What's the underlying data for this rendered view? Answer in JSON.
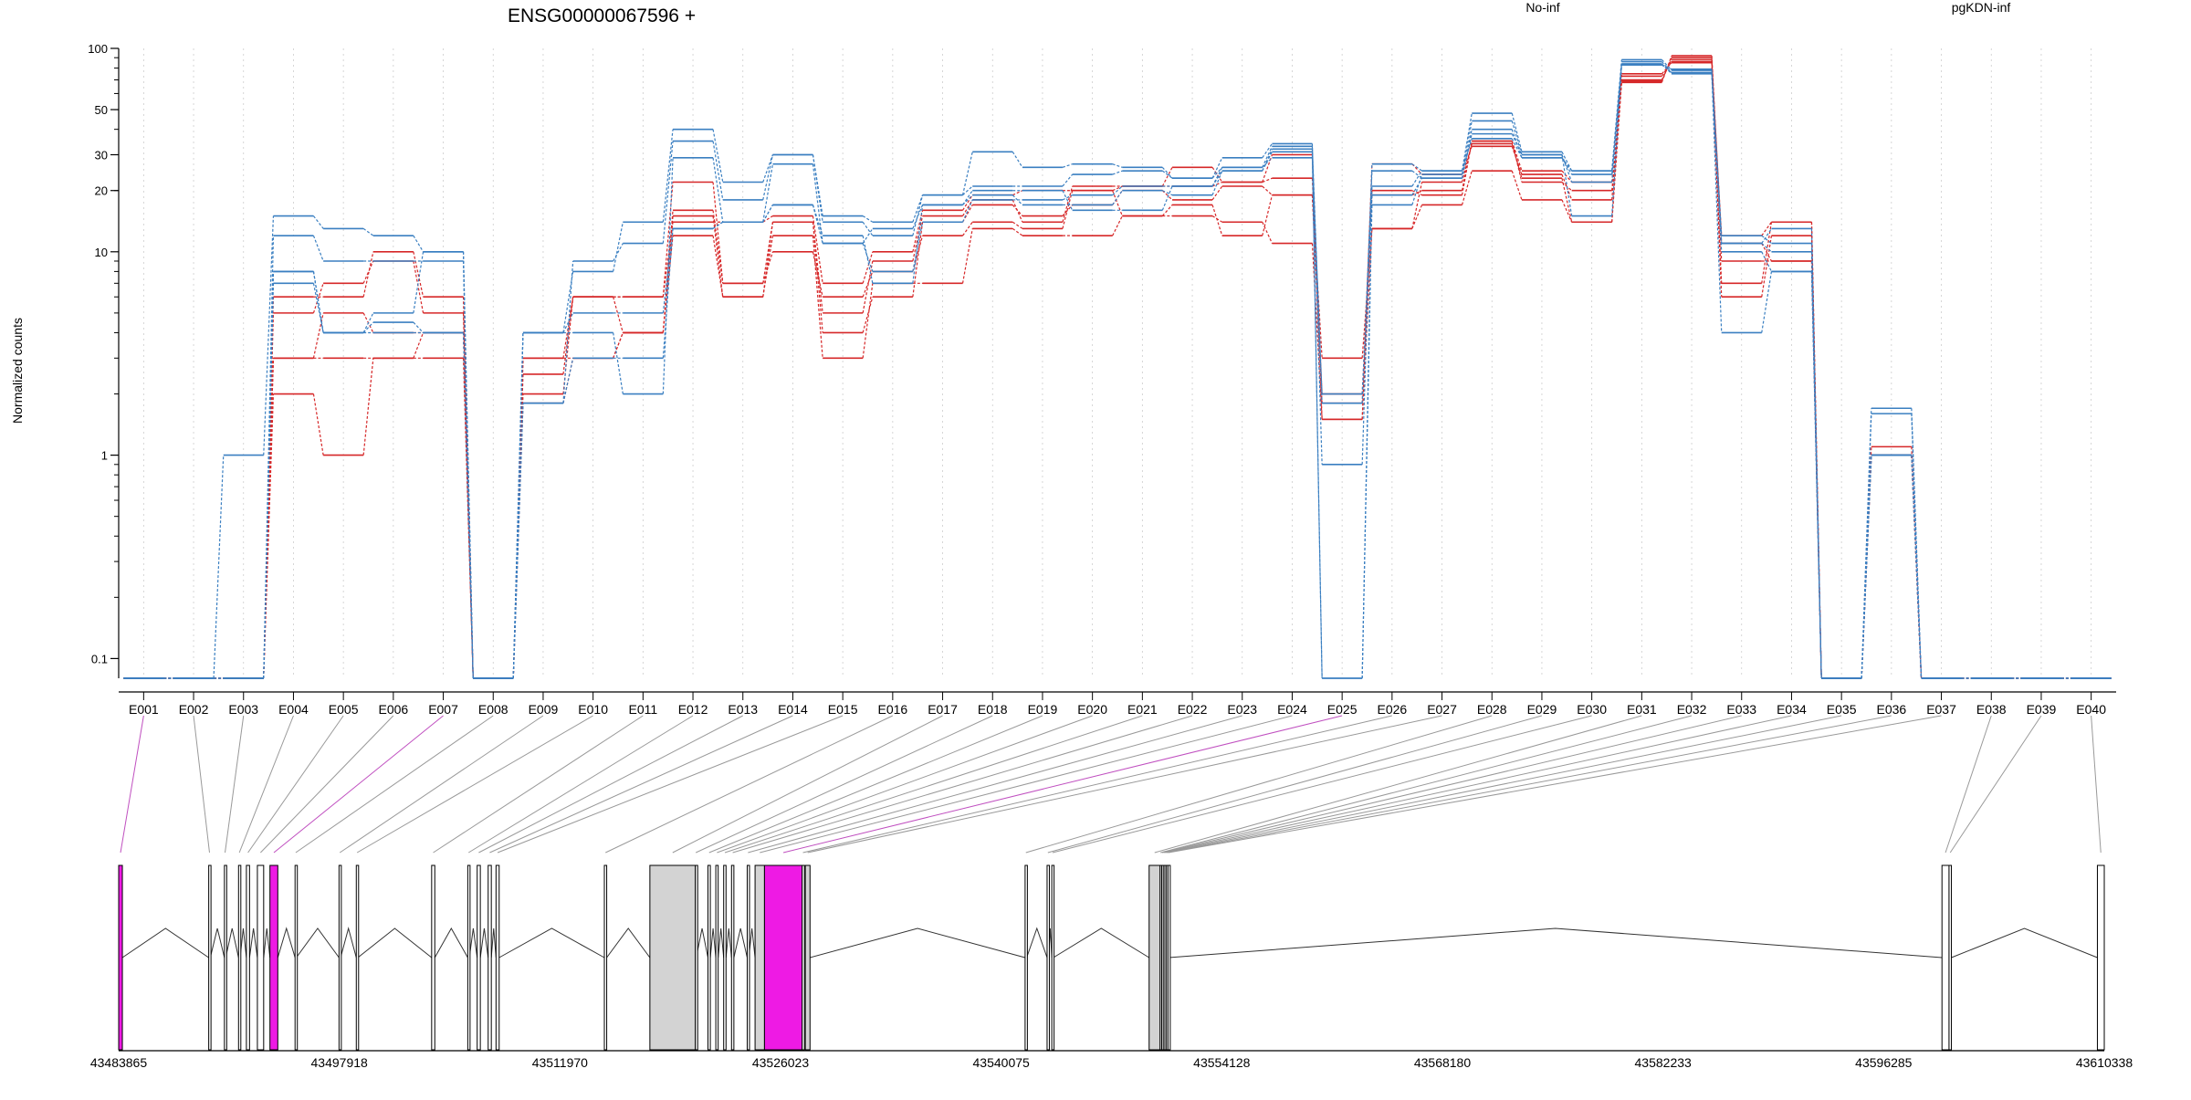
{
  "chart_data": [
    {
      "type": "line",
      "title": "ENSG00000067596 +",
      "ylabel": "Normalized counts",
      "xlabel": "",
      "yscale": "log",
      "ylim": [
        0.08,
        100
      ],
      "yticks": [
        0.1,
        1,
        10,
        20,
        30,
        50,
        100
      ],
      "ytick_labels": [
        "0.1",
        "1",
        "10",
        "20",
        "30",
        "50",
        "100"
      ],
      "grid": "vertical dotted",
      "legend": "top, horizontal",
      "categories": [
        "E001",
        "E002",
        "E003",
        "E004",
        "E005",
        "E006",
        "E007",
        "E008",
        "E009",
        "E010",
        "E011",
        "E012",
        "E013",
        "E014",
        "E015",
        "E016",
        "E017",
        "E018",
        "E019",
        "E020",
        "E021",
        "E022",
        "E023",
        "E024",
        "E025",
        "E026",
        "E027",
        "E028",
        "E029",
        "E030",
        "E031",
        "E032",
        "E033",
        "E034",
        "E035",
        "E036",
        "E037",
        "E038",
        "E039",
        "E040"
      ],
      "groups": [
        {
          "name": "No-inf",
          "color": "#d62728"
        },
        {
          "name": "pgKDN-inf",
          "color": "#3a7fc1"
        }
      ],
      "series": [
        {
          "group": "No-inf",
          "values": [
            0.08,
            0.08,
            0.08,
            6,
            6,
            10,
            6,
            0.08,
            3,
            3,
            4,
            15,
            6,
            14,
            5,
            9,
            15,
            18,
            14,
            21,
            21,
            21,
            22,
            23,
            2,
            20,
            19,
            35,
            25,
            22,
            75,
            85,
            12,
            14,
            0.08,
            1,
            0.08,
            0.08,
            0.08,
            0.08
          ]
        },
        {
          "group": "No-inf",
          "values": [
            0.08,
            0.08,
            0.08,
            5,
            7,
            9,
            5,
            0.08,
            2.5,
            6,
            6,
            22,
            7,
            10,
            6,
            8,
            12,
            14,
            13,
            20,
            15,
            15,
            14,
            11,
            1.5,
            13,
            17,
            25,
            18,
            14,
            70,
            88,
            9,
            9,
            0.08,
            1,
            0.08,
            0.08,
            0.08,
            0.08
          ]
        },
        {
          "group": "No-inf",
          "values": [
            0.08,
            0.08,
            0.08,
            3,
            5,
            4,
            4,
            0.08,
            2,
            6,
            4,
            16,
            7,
            14,
            4,
            6,
            14,
            17,
            15,
            17,
            20,
            18,
            21,
            19,
            1.8,
            19,
            20,
            35,
            22,
            20,
            68,
            92,
            11,
            9,
            0.08,
            1,
            0.08,
            0.08,
            0.08,
            0.08
          ]
        },
        {
          "group": "No-inf",
          "values": [
            0.08,
            0.08,
            0.08,
            2,
            1,
            3,
            3,
            0.08,
            1.8,
            3,
            4,
            12,
            6,
            12,
            3,
            7,
            7,
            13,
            12,
            12,
            15,
            17,
            12,
            19,
            3,
            13,
            22,
            34,
            23,
            14,
            69,
            90,
            6,
            12,
            0.08,
            1,
            0.08,
            0.08,
            0.08,
            0.08
          ]
        },
        {
          "group": "No-inf",
          "values": [
            0.08,
            0.08,
            0.08,
            3,
            3,
            3,
            4,
            0.08,
            3,
            6,
            6,
            14,
            14,
            15,
            7,
            10,
            16,
            19,
            20,
            20,
            21,
            26,
            22,
            30,
            1.5,
            27,
            24,
            33,
            24,
            18,
            73,
            86,
            7,
            14,
            0.08,
            1.1,
            0.08,
            0.08,
            0.08,
            0.08
          ]
        },
        {
          "group": "pgKDN-inf",
          "values": [
            0.08,
            0.08,
            1,
            15,
            13,
            12,
            10,
            0.08,
            4,
            8,
            14,
            40,
            22,
            30,
            15,
            14,
            19,
            31,
            26,
            27,
            26,
            23,
            29,
            34,
            0.9,
            27,
            25,
            48,
            31,
            25,
            88,
            78,
            12,
            11,
            0.08,
            1,
            0.08,
            0.08,
            0.08,
            0.08
          ]
        },
        {
          "group": "pgKDN-inf",
          "values": [
            0.08,
            0.08,
            0.08,
            12,
            9,
            9,
            9,
            0.08,
            1.8,
            9,
            11,
            35,
            18,
            30,
            14,
            12,
            19,
            21,
            21,
            24,
            25,
            23,
            26,
            33,
            1.8,
            25,
            23,
            40,
            29,
            25,
            86,
            76,
            11,
            13,
            0.08,
            1.7,
            0.08,
            0.08,
            0.08,
            0.08
          ]
        },
        {
          "group": "pgKDN-inf",
          "values": [
            0.08,
            0.08,
            0.08,
            8,
            4,
            4.5,
            4,
            0.08,
            4,
            4,
            2,
            29,
            14,
            27,
            11,
            13,
            17,
            20,
            20,
            16,
            16,
            21,
            25,
            32,
            0.08,
            17,
            24,
            44,
            30,
            22,
            84,
            75,
            11,
            10,
            0.08,
            1,
            0.08,
            0.08,
            0.08,
            0.08
          ]
        },
        {
          "group": "pgKDN-inf",
          "values": [
            0.08,
            0.08,
            0.08,
            7,
            4,
            4,
            4,
            0.08,
            1.8,
            3,
            3,
            13,
            14,
            17,
            11,
            8,
            14,
            18,
            18,
            19,
            21,
            21,
            26,
            29,
            2,
            19,
            23,
            38,
            30,
            15,
            83,
            76,
            4,
            8,
            0.08,
            1.6,
            0.08,
            0.08,
            0.08,
            0.08
          ]
        },
        {
          "group": "pgKDN-inf",
          "values": [
            0.08,
            0.08,
            0.08,
            8,
            4,
            5,
            10,
            0.08,
            4,
            5,
            5,
            13,
            14,
            17,
            12,
            7,
            17,
            19,
            17,
            17,
            20,
            19,
            25,
            31,
            0.08,
            21,
            25,
            36,
            29,
            24,
            83,
            79,
            10,
            8,
            0.08,
            1,
            0.08,
            0.08,
            0.08,
            0.08
          ]
        }
      ]
    },
    {
      "type": "gene-structure",
      "coordinate_ticks": [
        "43483865",
        "43497918",
        "43511970",
        "43526023",
        "43540075",
        "43554128",
        "43568180",
        "43582233",
        "43596285",
        "43610338"
      ],
      "genomic_range": [
        43483865,
        43610338
      ],
      "exon_colors": {
        "default": "#ffffff",
        "constitutive": "#d3d3d3",
        "tested": "#ee1ae4"
      },
      "exons": [
        {
          "id": "E001",
          "start": 43483865,
          "end": 43484100,
          "type": "tested"
        },
        {
          "id": "E002",
          "start": 43489600,
          "end": 43489700,
          "type": "default"
        },
        {
          "id": "E003",
          "start": 43490600,
          "end": 43490680,
          "type": "default"
        },
        {
          "id": "E004",
          "start": 43491500,
          "end": 43491600,
          "type": "default"
        },
        {
          "id": "E005",
          "start": 43492000,
          "end": 43492200,
          "type": "default"
        },
        {
          "id": "E006",
          "start": 43492700,
          "end": 43493100,
          "type": "default"
        },
        {
          "id": "E007",
          "start": 43493500,
          "end": 43494000,
          "type": "tested"
        },
        {
          "id": "E008",
          "start": 43495100,
          "end": 43495180,
          "type": "default"
        },
        {
          "id": "E009",
          "start": 43497900,
          "end": 43498000,
          "type": "default"
        },
        {
          "id": "E010",
          "start": 43499000,
          "end": 43499100,
          "type": "default"
        },
        {
          "id": "E011",
          "start": 43503800,
          "end": 43504000,
          "type": "default"
        },
        {
          "id": "E012",
          "start": 43506100,
          "end": 43506200,
          "type": "default"
        },
        {
          "id": "E013",
          "start": 43506700,
          "end": 43506900,
          "type": "default"
        },
        {
          "id": "E014",
          "start": 43507400,
          "end": 43507600,
          "type": "default"
        },
        {
          "id": "E015",
          "start": 43507900,
          "end": 43508100,
          "type": "default"
        },
        {
          "id": "E016",
          "start": 43514800,
          "end": 43514950,
          "type": "default"
        },
        {
          "id": "E017",
          "start": 43517700,
          "end": 43520600,
          "type": "constitutive"
        },
        {
          "id": "E018",
          "start": 43520600,
          "end": 43520650,
          "type": "default"
        },
        {
          "id": "E019",
          "start": 43521400,
          "end": 43521550,
          "type": "default"
        },
        {
          "id": "E020",
          "start": 43521900,
          "end": 43522050,
          "type": "default"
        },
        {
          "id": "E021",
          "start": 43522400,
          "end": 43522550,
          "type": "default"
        },
        {
          "id": "E022",
          "start": 43522900,
          "end": 43523050,
          "type": "default"
        },
        {
          "id": "E023",
          "start": 43523900,
          "end": 43524000,
          "type": "default"
        },
        {
          "id": "E024",
          "start": 43524400,
          "end": 43525000,
          "type": "constitutive"
        },
        {
          "id": "E025",
          "start": 43525000,
          "end": 43527400,
          "type": "tested"
        },
        {
          "id": "E026",
          "start": 43527400,
          "end": 43527500,
          "type": "default"
        },
        {
          "id": "E027",
          "start": 43527600,
          "end": 43527900,
          "type": "constitutive"
        },
        {
          "id": "E028",
          "start": 43541600,
          "end": 43541700,
          "type": "default"
        },
        {
          "id": "E029",
          "start": 43543000,
          "end": 43543100,
          "type": "default"
        },
        {
          "id": "E030",
          "start": 43543300,
          "end": 43543400,
          "type": "default"
        },
        {
          "id": "E031",
          "start": 43549500,
          "end": 43550200,
          "type": "constitutive"
        },
        {
          "id": "E032",
          "start": 43550200,
          "end": 43550250,
          "type": "default"
        },
        {
          "id": "E033",
          "start": 43550300,
          "end": 43550350,
          "type": "default"
        },
        {
          "id": "E034",
          "start": 43550400,
          "end": 43550450,
          "type": "default"
        },
        {
          "id": "E035",
          "start": 43550500,
          "end": 43550550,
          "type": "default"
        },
        {
          "id": "E036",
          "start": 43550600,
          "end": 43550650,
          "type": "default"
        },
        {
          "id": "E037",
          "start": 43550700,
          "end": 43550750,
          "type": "default"
        },
        {
          "id": "E038",
          "start": 43600000,
          "end": 43600450,
          "type": "default"
        },
        {
          "id": "E039",
          "start": 43600450,
          "end": 43600600,
          "type": "default"
        },
        {
          "id": "E040",
          "start": 43609900,
          "end": 43610338,
          "type": "default"
        }
      ]
    }
  ]
}
